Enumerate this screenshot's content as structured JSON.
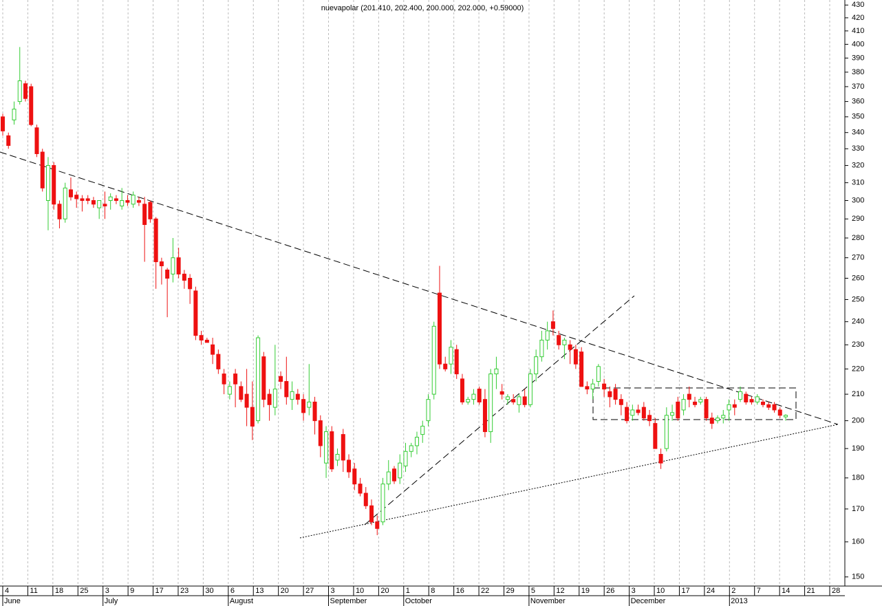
{
  "chart_data": {
    "type": "candlestick",
    "title": "nuevapolar (201.410, 202.400, 200.000, 202.000, +0.59000)",
    "log_scale": true,
    "ylim": [
      147.5,
      434
    ],
    "yticks": [
      150,
      160,
      170,
      180,
      190,
      200,
      210,
      220,
      230,
      240,
      250,
      260,
      270,
      280,
      290,
      300,
      310,
      320,
      330,
      340,
      350,
      360,
      370,
      380,
      390,
      400,
      410,
      420,
      430
    ],
    "xtick_labels": [
      "4",
      "11",
      "18",
      "25",
      "3",
      "9",
      "17",
      "23",
      "30",
      "6",
      "13",
      "20",
      "27",
      "3",
      "10",
      "20",
      "1",
      "8",
      "16",
      "22",
      "29",
      "5",
      "12",
      "19",
      "26",
      "3",
      "10",
      "17",
      "24",
      "2",
      "7",
      "14",
      "21",
      "28"
    ],
    "months": [
      "June",
      "July",
      "August",
      "September",
      "October",
      "November",
      "December",
      "2013"
    ],
    "up_color": "#33cc33",
    "down_color": "#ee1111",
    "grid": true,
    "candles": [
      [
        350,
        352,
        338,
        341
      ],
      [
        338,
        340,
        330,
        332
      ],
      [
        348,
        360,
        345,
        355
      ],
      [
        360,
        398,
        358,
        374
      ],
      [
        372,
        374,
        360,
        362
      ],
      [
        370,
        372,
        344,
        345
      ],
      [
        343,
        345,
        325,
        327
      ],
      [
        328,
        330,
        305,
        307
      ],
      [
        300,
        325,
        284,
        320
      ],
      [
        320,
        322,
        295,
        298
      ],
      [
        298,
        300,
        285,
        290
      ],
      [
        290,
        310,
        288,
        307
      ],
      [
        306,
        313,
        300,
        302
      ],
      [
        303,
        305,
        296,
        301
      ],
      [
        301,
        303,
        294,
        300
      ],
      [
        301,
        303,
        298,
        300
      ],
      [
        300,
        302,
        296,
        298
      ],
      [
        296,
        300,
        290,
        300
      ],
      [
        298,
        305,
        290,
        297
      ],
      [
        300,
        304,
        295,
        302
      ],
      [
        301,
        303,
        298,
        300
      ],
      [
        297,
        307,
        295,
        300
      ],
      [
        300,
        303,
        297,
        299
      ],
      [
        298,
        305,
        296,
        303
      ],
      [
        300,
        302,
        297,
        299
      ],
      [
        298,
        302,
        268,
        287
      ],
      [
        299,
        300,
        288,
        290
      ],
      [
        290,
        291,
        255,
        268
      ],
      [
        268,
        270,
        257,
        266
      ],
      [
        264,
        265,
        242,
        260
      ],
      [
        262,
        280,
        258,
        270
      ],
      [
        270,
        275,
        260,
        262
      ],
      [
        262,
        264,
        255,
        259
      ],
      [
        260,
        262,
        248,
        255
      ],
      [
        254,
        256,
        232,
        234
      ],
      [
        234,
        236,
        230,
        232
      ],
      [
        232,
        233,
        231,
        231
      ],
      [
        230,
        233,
        222,
        226
      ],
      [
        226,
        228,
        218,
        220
      ],
      [
        218,
        220,
        210,
        214
      ],
      [
        210,
        215,
        208,
        213
      ],
      [
        218,
        220,
        205,
        214
      ],
      [
        213,
        215,
        207,
        208
      ],
      [
        210,
        220,
        198,
        205
      ],
      [
        205,
        215,
        193,
        198
      ],
      [
        200,
        234,
        199,
        233
      ],
      [
        225,
        227,
        205,
        208
      ],
      [
        210,
        212,
        200,
        206
      ],
      [
        205,
        230,
        202,
        212
      ],
      [
        217,
        219,
        212,
        215
      ],
      [
        215,
        225,
        206,
        209
      ],
      [
        208,
        215,
        204,
        211
      ],
      [
        210,
        212,
        206,
        208
      ],
      [
        208,
        210,
        200,
        203
      ],
      [
        205,
        222,
        202,
        207
      ],
      [
        207,
        209,
        195,
        200
      ],
      [
        200,
        202,
        187,
        191
      ],
      [
        185,
        198,
        180,
        196
      ],
      [
        196,
        198,
        182,
        183
      ],
      [
        186,
        190,
        184,
        188
      ],
      [
        195,
        197,
        182,
        186
      ],
      [
        186,
        188,
        180,
        182
      ],
      [
        183,
        185,
        176,
        178
      ],
      [
        178,
        180,
        174,
        175
      ],
      [
        175,
        177,
        170,
        171
      ],
      [
        171,
        173,
        165,
        166
      ],
      [
        166,
        168,
        162,
        164
      ],
      [
        166,
        180,
        165,
        178
      ],
      [
        178,
        186,
        176,
        182
      ],
      [
        183,
        184,
        178,
        179
      ],
      [
        180,
        188,
        178,
        185
      ],
      [
        184,
        192,
        182,
        189
      ],
      [
        189,
        192,
        187,
        191
      ],
      [
        191,
        196,
        188,
        194
      ],
      [
        195,
        200,
        192,
        198
      ],
      [
        200,
        210,
        198,
        208
      ],
      [
        210,
        240,
        208,
        238
      ],
      [
        253,
        266,
        220,
        222
      ],
      [
        222,
        225,
        219,
        220
      ],
      [
        222,
        232,
        218,
        229
      ],
      [
        228,
        230,
        216,
        218
      ],
      [
        216,
        218,
        206,
        207
      ],
      [
        207,
        209,
        206,
        208
      ],
      [
        208,
        212,
        206,
        210
      ],
      [
        212,
        213,
        206,
        207
      ],
      [
        208,
        212,
        194,
        196
      ],
      [
        196,
        220,
        192,
        218
      ],
      [
        218,
        225,
        212,
        220
      ],
      [
        211,
        214,
        208,
        210
      ],
      [
        208,
        210,
        206,
        209
      ],
      [
        208,
        210,
        206,
        207
      ],
      [
        206,
        210,
        203,
        209
      ],
      [
        209,
        212,
        205,
        206
      ],
      [
        206,
        220,
        205,
        218
      ],
      [
        218,
        228,
        215,
        225
      ],
      [
        225,
        236,
        223,
        232
      ],
      [
        232,
        240,
        228,
        236
      ],
      [
        240,
        245,
        234,
        237
      ],
      [
        234,
        236,
        228,
        230
      ],
      [
        230,
        233,
        224,
        232
      ],
      [
        230,
        232,
        222,
        228
      ],
      [
        228,
        230,
        220,
        222
      ],
      [
        227,
        229,
        213,
        213
      ],
      [
        213,
        215,
        210,
        212
      ],
      [
        212,
        216,
        208,
        214
      ],
      [
        215,
        222,
        213,
        221
      ],
      [
        214,
        216,
        209,
        212
      ],
      [
        211,
        213,
        205,
        209
      ],
      [
        212,
        214,
        206,
        208
      ],
      [
        208,
        210,
        202,
        206
      ],
      [
        205,
        207,
        199,
        200
      ],
      [
        202,
        206,
        200,
        204
      ],
      [
        204,
        206,
        202,
        203
      ],
      [
        205,
        207,
        200,
        201
      ],
      [
        202,
        204,
        198,
        200
      ],
      [
        199,
        201,
        190,
        190
      ],
      [
        188,
        190,
        183,
        185
      ],
      [
        190,
        205,
        189,
        202
      ],
      [
        202,
        206,
        200,
        203
      ],
      [
        207,
        209,
        200,
        201
      ],
      [
        204,
        210,
        202,
        208
      ],
      [
        210,
        213,
        205,
        208
      ],
      [
        207,
        209,
        205,
        206
      ],
      [
        207,
        209,
        206,
        208
      ],
      [
        208,
        209,
        200,
        201
      ],
      [
        201,
        203,
        197,
        199
      ],
      [
        200,
        202,
        199,
        201
      ],
      [
        201,
        204,
        199,
        202
      ],
      [
        204,
        208,
        200,
        206
      ],
      [
        206,
        208,
        202,
        205
      ],
      [
        208,
        213,
        207,
        211
      ],
      [
        210,
        211,
        206,
        207
      ],
      [
        208,
        209,
        206,
        207
      ],
      [
        207,
        210,
        206,
        209
      ],
      [
        207,
        208,
        205,
        206
      ],
      [
        206,
        207,
        204,
        205
      ],
      [
        206,
        207,
        203,
        204
      ],
      [
        204,
        205,
        201,
        202
      ],
      [
        201.41,
        202.4,
        200,
        202
      ]
    ]
  }
}
